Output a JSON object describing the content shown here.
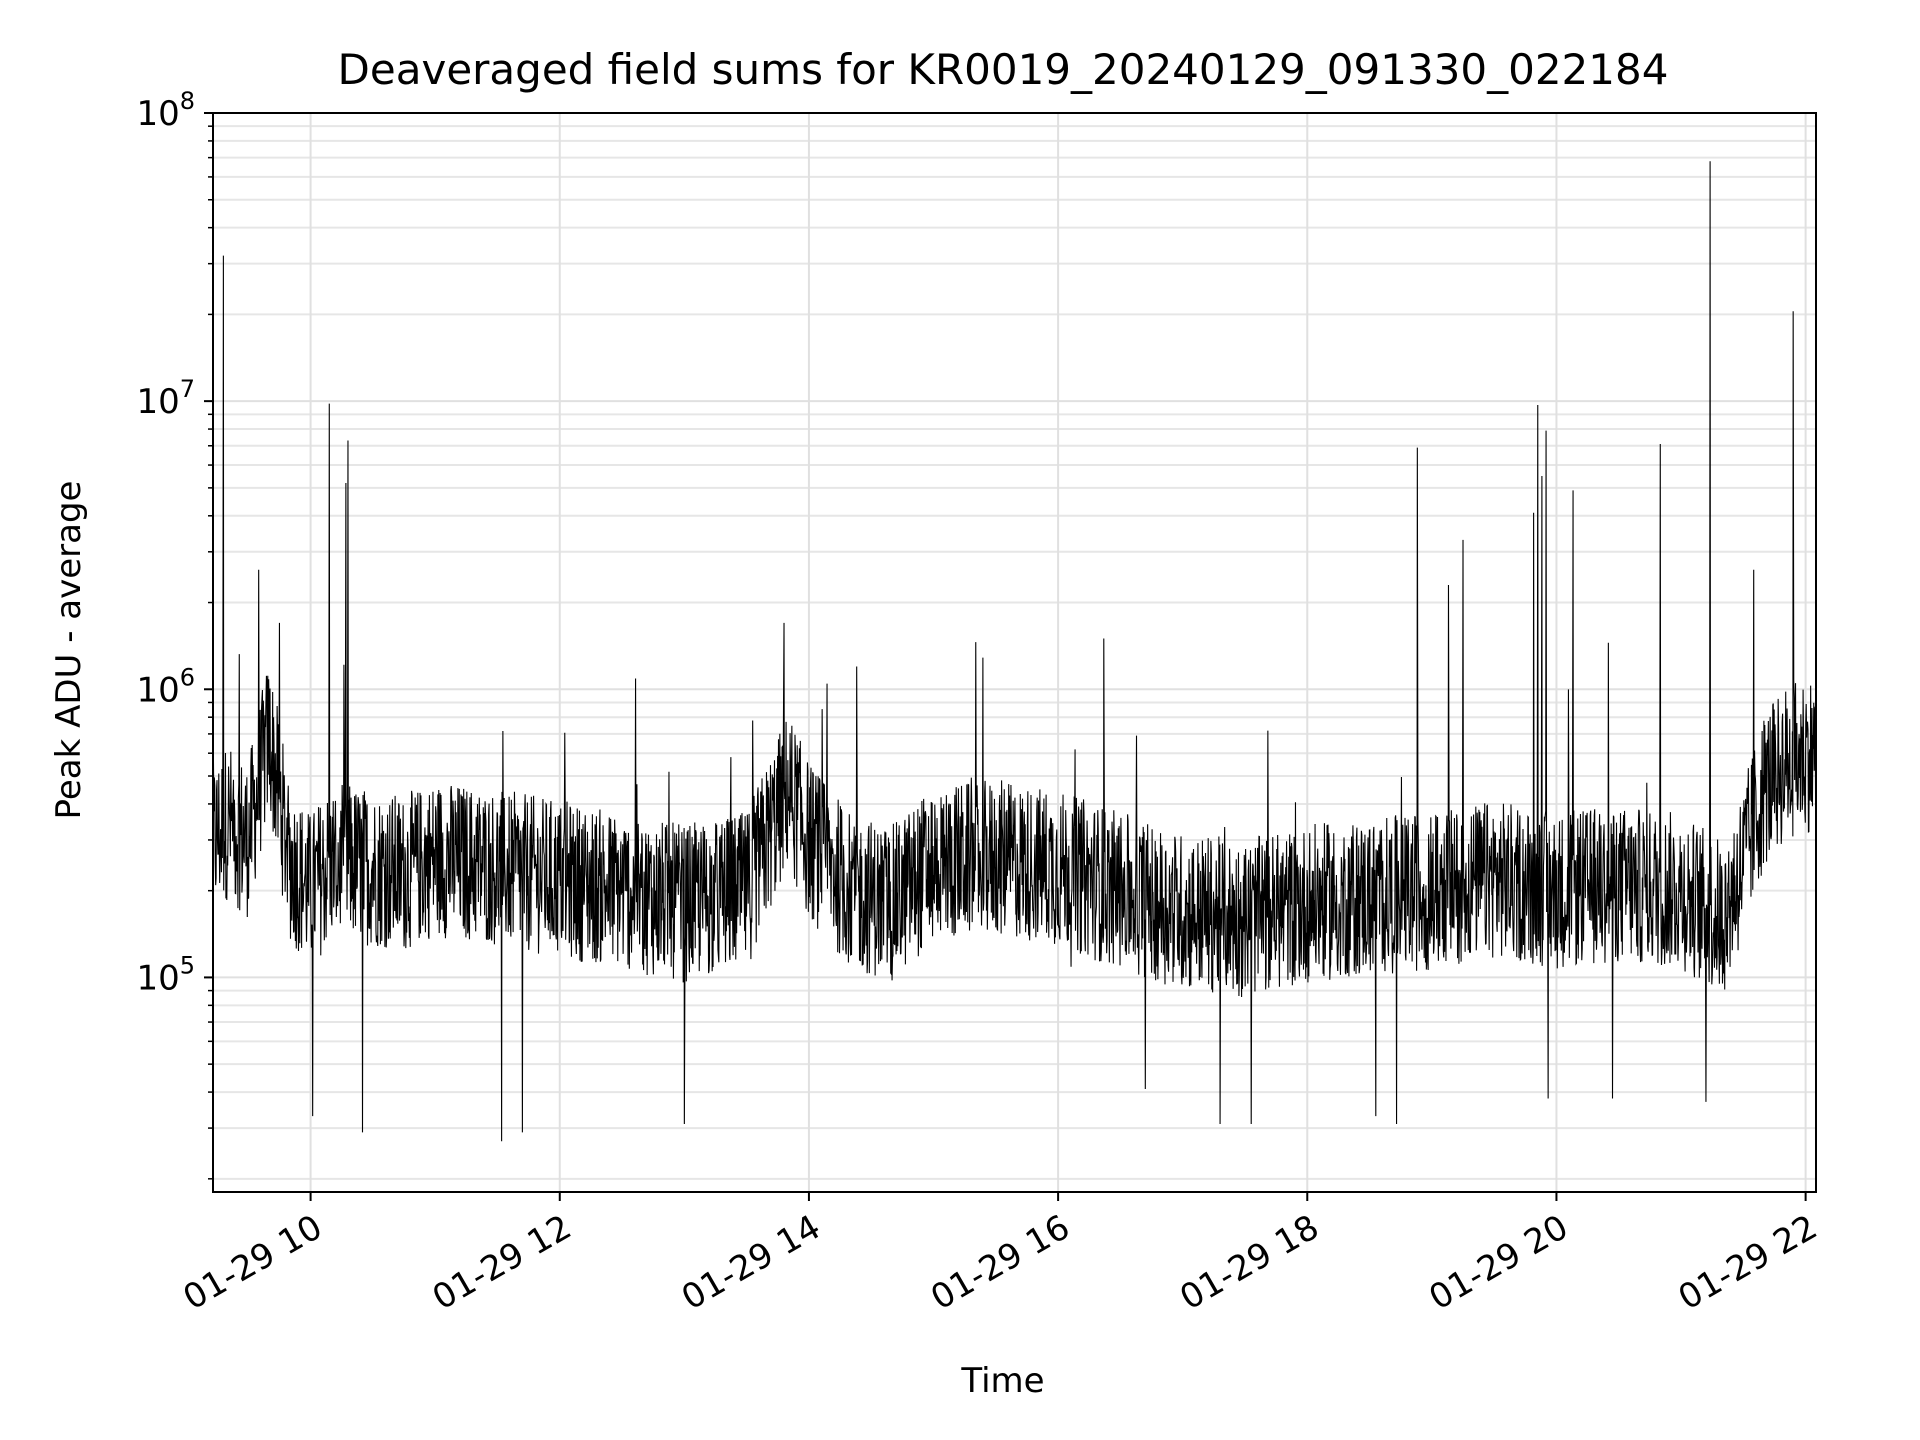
{
  "chart_data": {
    "type": "line",
    "title": "Deaveraged field sums for KR0019_20240129_091330_022184",
    "xlabel": "Time",
    "ylabel": "Peak ADU - average",
    "xlim": [
      "2024-01-29 09:13",
      "2024-01-29 22:05"
    ],
    "ylim": [
      18000,
      100000000
    ],
    "yscale": "log",
    "grid": true,
    "line_color": "#000000",
    "x_ticks": [
      {
        "x": "2024-01-29 10:00",
        "label": "01-29 10"
      },
      {
        "x": "2024-01-29 12:00",
        "label": "01-29 12"
      },
      {
        "x": "2024-01-29 14:00",
        "label": "01-29 14"
      },
      {
        "x": "2024-01-29 16:00",
        "label": "01-29 16"
      },
      {
        "x": "2024-01-29 18:00",
        "label": "01-29 18"
      },
      {
        "x": "2024-01-29 20:00",
        "label": "01-29 20"
      },
      {
        "x": "2024-01-29 22:00",
        "label": "01-29 22"
      }
    ],
    "y_ticks": [
      {
        "value": 100000,
        "base": "10",
        "exp": "5"
      },
      {
        "value": 1000000,
        "base": "10",
        "exp": "6"
      },
      {
        "value": 10000000,
        "base": "10",
        "exp": "7"
      },
      {
        "value": 100000000,
        "base": "10",
        "exp": "8"
      }
    ],
    "series": [
      {
        "x": [
          "2024-01-29 09:13",
          "2024-01-29 09:20",
          "2024-01-29 09:30",
          "2024-01-29 09:40",
          "2024-01-29 09:50",
          "2024-01-29 10:00",
          "2024-01-29 10:10",
          "2024-01-29 10:20",
          "2024-01-29 10:30",
          "2024-01-29 10:45",
          "2024-01-29 11:00",
          "2024-01-29 11:30",
          "2024-01-29 12:00",
          "2024-01-29 12:30",
          "2024-01-29 13:00",
          "2024-01-29 13:30",
          "2024-01-29 13:50",
          "2024-01-29 14:00",
          "2024-01-29 14:20",
          "2024-01-29 14:40",
          "2024-01-29 15:00",
          "2024-01-29 15:30",
          "2024-01-29 16:00",
          "2024-01-29 16:30",
          "2024-01-29 17:00",
          "2024-01-29 17:30",
          "2024-01-29 18:00",
          "2024-01-29 18:30",
          "2024-01-29 19:00",
          "2024-01-29 19:30",
          "2024-01-29 20:00",
          "2024-01-29 20:30",
          "2024-01-29 21:00",
          "2024-01-29 21:20",
          "2024-01-29 21:30",
          "2024-01-29 21:40",
          "2024-01-29 21:50",
          "2024-01-29 22:00",
          "2024-01-29 22:05"
        ],
        "values": [
          300000,
          350000,
          300000,
          700000,
          250000,
          200000,
          250000,
          250000,
          240000,
          230000,
          260000,
          240000,
          220000,
          200000,
          180000,
          200000,
          450000,
          300000,
          200000,
          180000,
          250000,
          260000,
          240000,
          200000,
          170000,
          160000,
          180000,
          190000,
          200000,
          220000,
          200000,
          210000,
          200000,
          160000,
          250000,
          450000,
          550000,
          600000,
          600000
        ],
        "spikes": [
          {
            "x": "2024-01-29 09:18",
            "value": 32000000
          },
          {
            "x": "2024-01-29 09:35",
            "value": 2600000
          },
          {
            "x": "2024-01-29 09:45",
            "value": 1700000
          },
          {
            "x": "2024-01-29 10:09",
            "value": 9800000
          },
          {
            "x": "2024-01-29 10:18",
            "value": 7300000
          },
          {
            "x": "2024-01-29 10:17",
            "value": 5200000
          },
          {
            "x": "2024-01-29 13:48",
            "value": 1700000
          },
          {
            "x": "2024-01-29 14:23",
            "value": 1200000
          },
          {
            "x": "2024-01-29 16:22",
            "value": 1500000
          },
          {
            "x": "2024-01-29 18:53",
            "value": 6900000
          },
          {
            "x": "2024-01-29 19:08",
            "value": 2300000
          },
          {
            "x": "2024-01-29 19:15",
            "value": 3300000
          },
          {
            "x": "2024-01-29 19:49",
            "value": 4100000
          },
          {
            "x": "2024-01-29 19:51",
            "value": 9700000
          },
          {
            "x": "2024-01-29 19:53",
            "value": 5500000
          },
          {
            "x": "2024-01-29 19:55",
            "value": 7900000
          },
          {
            "x": "2024-01-29 20:08",
            "value": 4900000
          },
          {
            "x": "2024-01-29 20:25",
            "value": 1450000
          },
          {
            "x": "2024-01-29 20:50",
            "value": 7100000
          },
          {
            "x": "2024-01-29 21:14",
            "value": 68000000
          },
          {
            "x": "2024-01-29 21:35",
            "value": 2600000
          },
          {
            "x": "2024-01-29 21:54",
            "value": 20500000
          }
        ],
        "dips": [
          {
            "x": "2024-01-29 10:01",
            "value": 33000
          },
          {
            "x": "2024-01-29 10:25",
            "value": 29000
          },
          {
            "x": "2024-01-29 11:32",
            "value": 27000
          },
          {
            "x": "2024-01-29 11:42",
            "value": 29000
          },
          {
            "x": "2024-01-29 13:00",
            "value": 31000
          },
          {
            "x": "2024-01-29 16:42",
            "value": 41000
          },
          {
            "x": "2024-01-29 17:18",
            "value": 31000
          },
          {
            "x": "2024-01-29 17:33",
            "value": 31000
          },
          {
            "x": "2024-01-29 18:33",
            "value": 33000
          },
          {
            "x": "2024-01-29 18:43",
            "value": 31000
          },
          {
            "x": "2024-01-29 19:56",
            "value": 38000
          },
          {
            "x": "2024-01-29 20:27",
            "value": 38000
          },
          {
            "x": "2024-01-29 21:12",
            "value": 37000
          }
        ]
      }
    ]
  }
}
